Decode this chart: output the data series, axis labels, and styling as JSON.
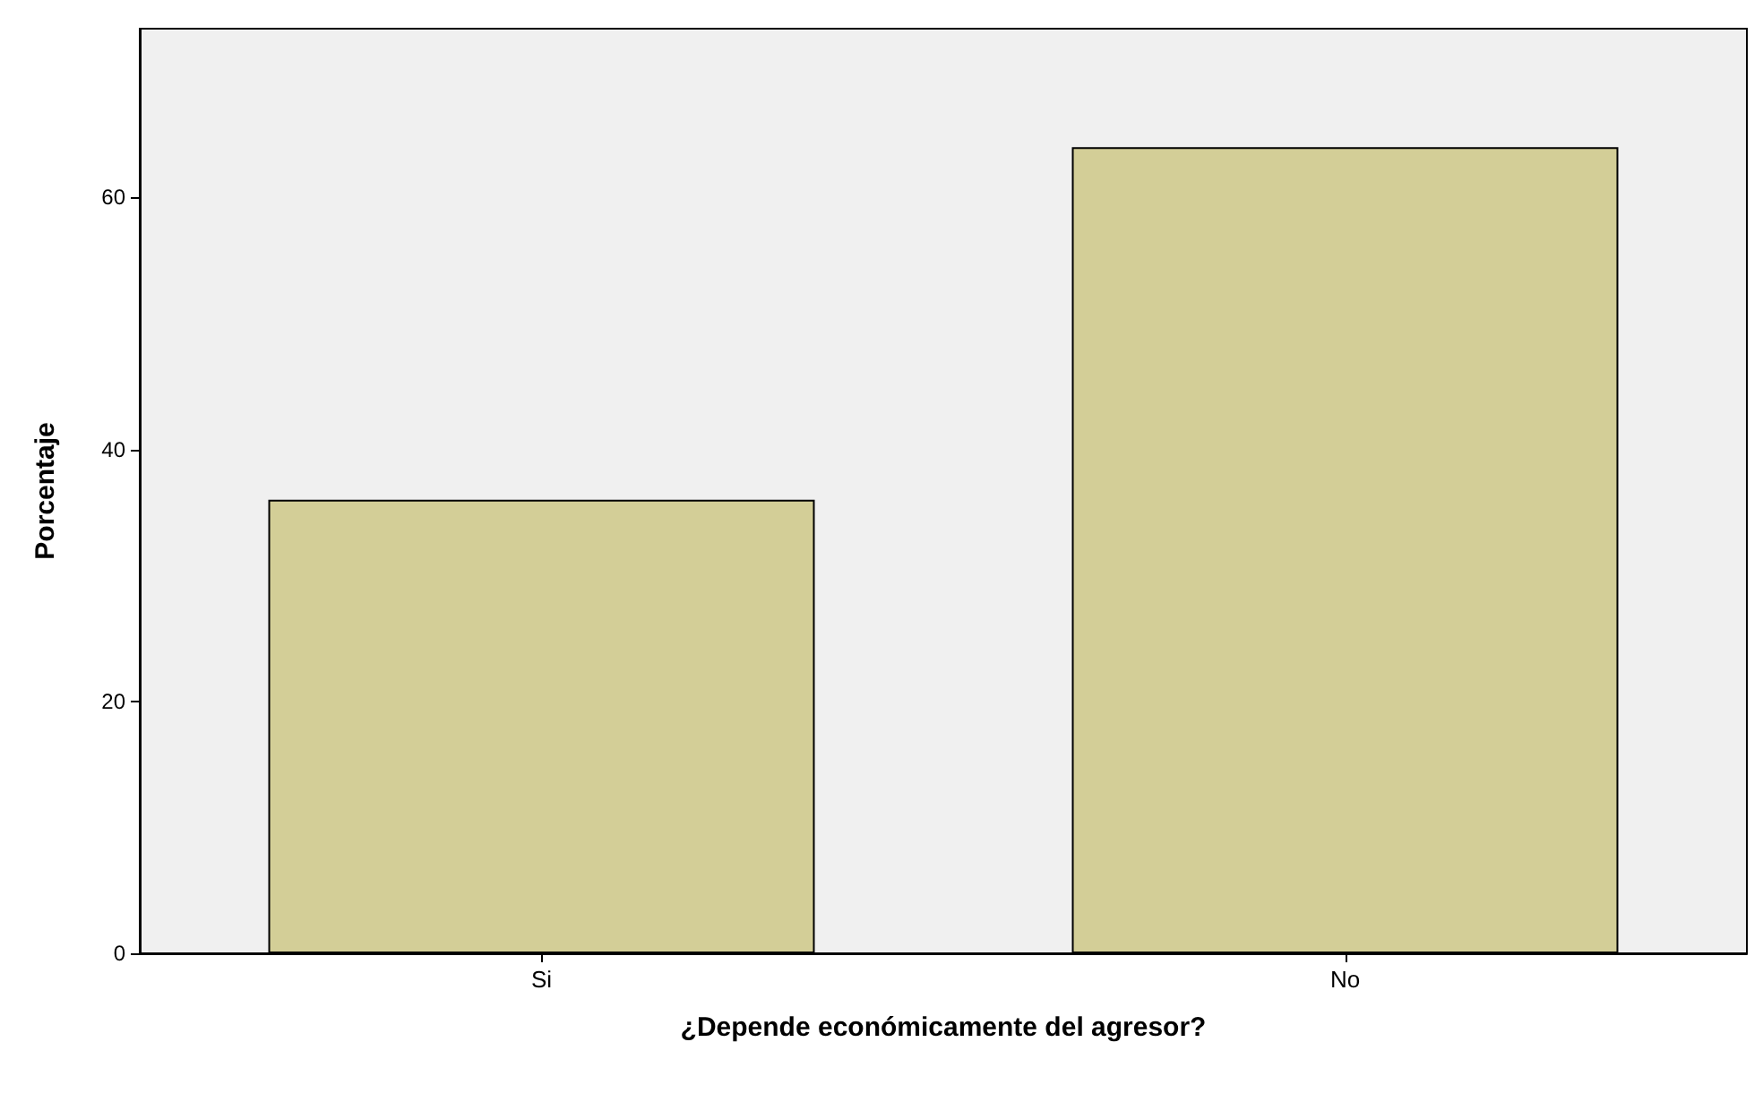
{
  "chart_data": {
    "type": "bar",
    "xlabel": "¿Depende económicamente del agresor?",
    "ylabel": "Porcentaje",
    "categories": [
      "Si",
      "No"
    ],
    "values": [
      36,
      64
    ],
    "color": "#d3ce97",
    "ylim": [
      0,
      73.4
    ],
    "yticks": [
      0,
      20,
      40,
      60
    ],
    "grid": false
  }
}
